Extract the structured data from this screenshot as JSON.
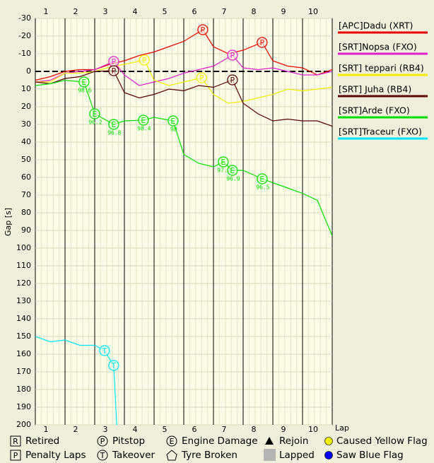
{
  "chart_data": {
    "type": "line",
    "y_label": "Gap [s]",
    "x_label": "Lap",
    "categories": [
      "1",
      "2",
      "3",
      "4",
      "5",
      "6",
      "7",
      "8",
      "9",
      "10"
    ],
    "xlim": [
      0,
      10
    ],
    "ylim": [
      -30,
      200
    ],
    "y_reversed": true,
    "yticks": [
      -30,
      -20,
      -10,
      0,
      10,
      20,
      30,
      40,
      50,
      60,
      70,
      80,
      90,
      100,
      110,
      120,
      130,
      140,
      150,
      160,
      170,
      180,
      190,
      200
    ],
    "grid": true,
    "zero_line": true,
    "legend": "right",
    "series": [
      {
        "name": "[APC]Dadu (XRT)",
        "color": "#e80000",
        "x": [
          0,
          0.5,
          1,
          1.5,
          2,
          2.5,
          3,
          3.5,
          4,
          4.5,
          5,
          5.64,
          6,
          6.5,
          7,
          7.64,
          8,
          8.5,
          9,
          9.5,
          10
        ],
        "values": [
          5,
          3,
          0,
          -1,
          -1,
          -4,
          -6,
          -9,
          -11,
          -14,
          -17,
          -23.6,
          -14,
          -10,
          -12,
          -16.4,
          -6,
          -3,
          -2,
          2,
          -1
        ]
      },
      {
        "name": "[SRT]Nopsa (FXO)",
        "color": "#e020c8",
        "x": [
          0,
          0.5,
          1,
          1.5,
          2,
          2.64,
          3,
          3.5,
          4,
          4.5,
          5,
          5.5,
          6,
          6.64,
          7,
          7.5,
          8,
          8.5,
          9,
          9.5,
          10
        ],
        "values": [
          6,
          5,
          1,
          0,
          -1,
          -5.6,
          2,
          8,
          6,
          4,
          1,
          -1,
          -3,
          -9.2,
          -2,
          -1,
          -2,
          0,
          2,
          2,
          0
        ]
      },
      {
        "name": "[SRT] teppari (RB4)",
        "color": "#f0f000",
        "x": [
          0,
          0.5,
          1,
          1.5,
          2,
          2.64,
          3,
          3.67,
          4,
          4.5,
          5,
          5.6,
          6,
          6.5,
          7,
          7.5,
          8,
          8.5,
          9,
          9.5,
          10
        ],
        "values": [
          6,
          6,
          1,
          1,
          0,
          -3,
          -4,
          -6.4,
          5,
          8,
          6,
          3.6,
          13,
          18,
          17,
          15,
          13,
          10,
          11,
          10,
          9
        ]
      },
      {
        "name": "[SRT] Juha (RB4)",
        "color": "#5a0000",
        "x": [
          0,
          0.5,
          1,
          1.5,
          2,
          2.64,
          3,
          3.5,
          4,
          4.5,
          5,
          5.5,
          6,
          6.64,
          7,
          7.5,
          8,
          8.5,
          9,
          9.5,
          10
        ],
        "values": [
          6,
          7,
          4,
          3,
          0,
          -0.4,
          12,
          15,
          13,
          10,
          11,
          8,
          9,
          4.8,
          18,
          24,
          28,
          27,
          28,
          28,
          31
        ]
      },
      {
        "name": "[SRT]Arde (FXO)",
        "color": "#00e000",
        "x": [
          0,
          0.5,
          1,
          1.64,
          2,
          2.64,
          3,
          3.64,
          4,
          4.64,
          5,
          5.5,
          6,
          6.33,
          6.64,
          7,
          7.64,
          8,
          8.5,
          9,
          9.5,
          10
        ],
        "values": [
          8,
          7,
          5,
          6,
          24,
          30,
          28,
          27.6,
          26,
          28,
          47,
          52,
          54,
          51.2,
          56,
          56,
          60.8,
          63,
          66,
          69,
          73,
          93
        ]
      },
      {
        "name": "[SRT]Traceur (FXO)",
        "color": "#00e8f8",
        "x": [
          0,
          0.5,
          1,
          1.5,
          2,
          2.33,
          2.64,
          2.74
        ],
        "values": [
          150,
          153,
          152,
          155,
          155,
          158,
          166.4,
          200
        ]
      }
    ],
    "events": [
      {
        "series": 0,
        "symbol": "P",
        "x": 5.64,
        "y": -23.6
      },
      {
        "series": 0,
        "symbol": "P",
        "x": 7.64,
        "y": -16.4
      },
      {
        "series": 1,
        "symbol": "P",
        "x": 2.64,
        "y": -5.6
      },
      {
        "series": 1,
        "symbol": "P",
        "x": 6.64,
        "y": -9.2
      },
      {
        "series": 2,
        "symbol": "P",
        "x": 3.67,
        "y": -6.4
      },
      {
        "series": 2,
        "symbol": "P",
        "x": 5.6,
        "y": 3.6
      },
      {
        "series": 3,
        "symbol": "P",
        "x": 2.64,
        "y": -0.4
      },
      {
        "series": 3,
        "symbol": "P",
        "x": 6.64,
        "y": 4.8
      },
      {
        "series": 4,
        "symbol": "E",
        "x": 1.64,
        "y": 6,
        "label": "98.6"
      },
      {
        "series": 4,
        "symbol": "E",
        "x": 2,
        "y": 24,
        "label": "96.2"
      },
      {
        "series": 4,
        "symbol": "E",
        "x": 2.64,
        "y": 30,
        "label": "96.8"
      },
      {
        "series": 4,
        "symbol": "E",
        "x": 3.64,
        "y": 27.6,
        "label": "98.4"
      },
      {
        "series": 4,
        "symbol": "E",
        "x": 4.64,
        "y": 28,
        "label": "98"
      },
      {
        "series": 4,
        "symbol": "E",
        "x": 6.33,
        "y": 51.2,
        "label": "97.2"
      },
      {
        "series": 4,
        "symbol": "E",
        "x": 6.64,
        "y": 56,
        "label": "96.9"
      },
      {
        "series": 4,
        "symbol": "E",
        "x": 7.64,
        "y": 60.8,
        "label": "96.5"
      },
      {
        "series": 5,
        "symbol": "T",
        "x": 2.33,
        "y": 158
      },
      {
        "series": 5,
        "symbol": "T",
        "x": 2.64,
        "y": 166.4
      }
    ],
    "key": [
      {
        "symbol": "R",
        "shape": "box",
        "label": "Retired"
      },
      {
        "symbol": "P",
        "shape": "box",
        "label": "Penalty Laps"
      },
      {
        "symbol": "P",
        "shape": "circle",
        "label": "Pitstop"
      },
      {
        "symbol": "T",
        "shape": "circle",
        "label": "Takeover"
      },
      {
        "symbol": "E",
        "shape": "circle",
        "label": "Engine Damage"
      },
      {
        "shape": "pentagon",
        "label": "Tyre Broken"
      },
      {
        "shape": "triangle",
        "label": "Rejoin"
      },
      {
        "shape": "square",
        "color": "#b4b4b4",
        "label": "Lapped"
      },
      {
        "shape": "dot",
        "color": "#f0f000",
        "label": "Caused Yellow Flag"
      },
      {
        "shape": "dot",
        "color": "#0000f0",
        "label": "Saw Blue Flag"
      }
    ]
  }
}
